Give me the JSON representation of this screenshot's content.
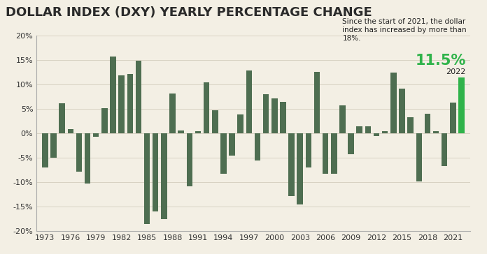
{
  "chart_data": {
    "type": "bar",
    "title": "DOLLAR INDEX (DXY) YEARLY PERCENTAGE CHANGE",
    "x": [
      1973,
      1974,
      1975,
      1976,
      1977,
      1978,
      1979,
      1980,
      1981,
      1982,
      1983,
      1984,
      1985,
      1986,
      1987,
      1988,
      1989,
      1990,
      1991,
      1992,
      1993,
      1994,
      1995,
      1996,
      1997,
      1998,
      1999,
      2000,
      2001,
      2002,
      2003,
      2004,
      2005,
      2006,
      2007,
      2008,
      2009,
      2010,
      2011,
      2012,
      2013,
      2014,
      2015,
      2016,
      2017,
      2018,
      2019,
      2020,
      2021,
      2022
    ],
    "values": [
      -7.0,
      -5.0,
      6.2,
      0.9,
      -7.8,
      -10.3,
      -0.7,
      5.2,
      15.7,
      11.9,
      12.1,
      14.9,
      -18.5,
      -16.0,
      -17.6,
      8.1,
      0.6,
      -10.8,
      0.4,
      10.4,
      4.7,
      -8.3,
      -4.5,
      3.8,
      12.9,
      -5.5,
      8.0,
      7.1,
      6.5,
      -12.8,
      -14.6,
      -7.0,
      12.6,
      -8.2,
      -8.3,
      5.7,
      -4.2,
      1.4,
      1.4,
      -0.5,
      0.4,
      12.4,
      9.1,
      3.3,
      -9.9,
      4.0,
      0.4,
      -6.7,
      6.3,
      11.5
    ],
    "colors": [
      "#4e6e51",
      "#4e6e51",
      "#4e6e51",
      "#4e6e51",
      "#4e6e51",
      "#4e6e51",
      "#4e6e51",
      "#4e6e51",
      "#4e6e51",
      "#4e6e51",
      "#4e6e51",
      "#4e6e51",
      "#4e6e51",
      "#4e6e51",
      "#4e6e51",
      "#4e6e51",
      "#4e6e51",
      "#4e6e51",
      "#4e6e51",
      "#4e6e51",
      "#4e6e51",
      "#4e6e51",
      "#4e6e51",
      "#4e6e51",
      "#4e6e51",
      "#4e6e51",
      "#4e6e51",
      "#4e6e51",
      "#4e6e51",
      "#4e6e51",
      "#4e6e51",
      "#4e6e51",
      "#4e6e51",
      "#4e6e51",
      "#4e6e51",
      "#4e6e51",
      "#4e6e51",
      "#4e6e51",
      "#4e6e51",
      "#4e6e51",
      "#4e6e51",
      "#4e6e51",
      "#4e6e51",
      "#4e6e51",
      "#4e6e51",
      "#4e6e51",
      "#4e6e51",
      "#4e6e51",
      "#4e6e51",
      "#2fb34a"
    ],
    "xlim": [
      1972,
      2023
    ],
    "xticks": [
      1973,
      1976,
      1979,
      1982,
      1985,
      1988,
      1991,
      1994,
      1997,
      2000,
      2003,
      2006,
      2009,
      2012,
      2015,
      2018,
      2021
    ],
    "ylim": [
      -20,
      20
    ],
    "yticks": [
      {
        "value": -20,
        "label": "-20%"
      },
      {
        "value": -15,
        "label": "-15%"
      },
      {
        "value": -10,
        "label": "-10%"
      },
      {
        "value": -5,
        "label": "-5%"
      },
      {
        "value": 0,
        "label": "0%"
      },
      {
        "value": 5,
        "label": "5%"
      },
      {
        "value": 10,
        "label": "10%"
      },
      {
        "value": 15,
        "label": "15%"
      },
      {
        "value": 20,
        "label": "20%"
      }
    ],
    "grid": true,
    "annotations": [
      {
        "text": "Since the start of 2021, the dollar index has increased by more than 18%."
      },
      {
        "text": "11.5%"
      },
      {
        "text": "2022"
      }
    ]
  }
}
